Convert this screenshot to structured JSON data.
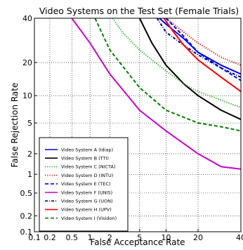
{
  "chart_data": {
    "type": "line",
    "title": "Video Systems on the Test Set (Female Trials)",
    "xlabel": "False Acceptance Rate",
    "ylabel": "False Rejection Rate",
    "x_scale": "normal-deviate",
    "y_scale": "normal-deviate",
    "xlim": [
      0.1,
      40
    ],
    "ylim": [
      0.1,
      40
    ],
    "x_ticks": [
      0.1,
      0.2,
      0.5,
      1,
      2,
      5,
      10,
      20,
      40
    ],
    "y_ticks": [
      0.1,
      0.2,
      0.5,
      1,
      2,
      5,
      10,
      20,
      40
    ],
    "x_tick_labels": [
      "0.1",
      "0.2",
      "0.5",
      "1",
      "2",
      "5",
      "10",
      "20",
      "40"
    ],
    "y_tick_labels": [
      "0.1",
      "0.2",
      "0.5",
      "1",
      "2",
      "5",
      "10",
      "20",
      "40"
    ],
    "grid": true,
    "legend_position": "bottom-left",
    "series": [
      {
        "name": "Video System A (Idiap)",
        "color": "#0000ff",
        "dash": "solid",
        "x": [
          8.5,
          10,
          15,
          20,
          30,
          40
        ],
        "y": [
          40,
          37,
          30,
          24,
          19,
          16
        ]
      },
      {
        "name": "Video System B (TTI)",
        "color": "#000000",
        "dash": "solid",
        "x": [
          5,
          7,
          10,
          15,
          20,
          30,
          40
        ],
        "y": [
          40,
          28,
          19,
          13,
          10,
          7,
          5.5
        ]
      },
      {
        "name": "Video System C (NICTA)",
        "color": "#22aa22",
        "dash": "dotted",
        "x": [
          2.2,
          3,
          5,
          10,
          15,
          20,
          30,
          40
        ],
        "y": [
          40,
          33,
          25,
          17,
          13,
          11,
          9,
          7.5
        ]
      },
      {
        "name": "Video System D (INTU)",
        "color": "#ff0000",
        "dash": "dotted",
        "x": [
          10,
          15,
          20,
          30,
          40
        ],
        "y": [
          40,
          33,
          28,
          22,
          19
        ]
      },
      {
        "name": "Video System E (TEC)",
        "color": "#0000ff",
        "dash": "dashed",
        "x": [
          10,
          15,
          20,
          30,
          40
        ],
        "y": [
          40,
          31,
          24,
          18,
          14
        ]
      },
      {
        "name": "Video System F (UNIS)",
        "color": "#cc00cc",
        "dash": "solid",
        "x": [
          0.5,
          1,
          2,
          5,
          10,
          20,
          30,
          40
        ],
        "y": [
          40,
          28,
          16,
          7,
          4,
          2,
          1.3,
          1.2
        ]
      },
      {
        "name": "Video System G (UON)",
        "color": "#000080",
        "dash": "dashdot",
        "x": [
          8,
          10,
          15,
          20,
          30,
          40
        ],
        "y": [
          40,
          33,
          27,
          23,
          18,
          15
        ]
      },
      {
        "name": "Video System H (UPV)",
        "color": "#ff0000",
        "dash": "solid",
        "x": [
          9.5,
          12,
          15,
          20,
          30,
          40
        ],
        "y": [
          40,
          33,
          27,
          21,
          15,
          11
        ]
      },
      {
        "name": "Video System I (Visidon)",
        "color": "#008000",
        "dash": "dashed",
        "x": [
          1.2,
          2,
          5,
          10,
          20,
          30,
          40
        ],
        "y": [
          40,
          25,
          12,
          7,
          5,
          4.5,
          4
        ]
      }
    ]
  }
}
